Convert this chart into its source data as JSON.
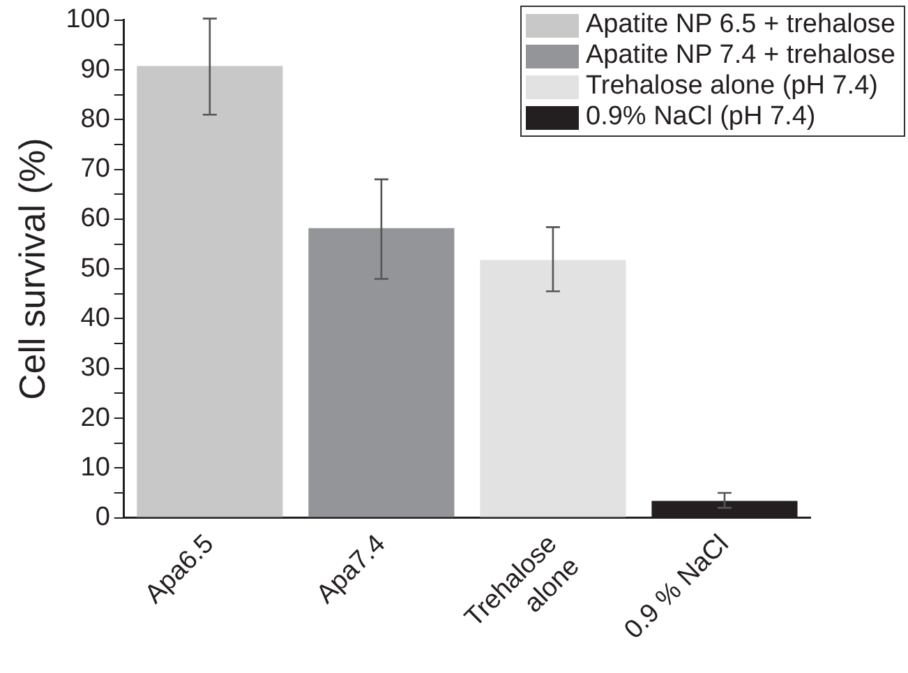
{
  "chart_data": {
    "type": "bar",
    "ylabel": "Cell survival (%)",
    "categories": [
      "Apa6.5",
      "Apa7.4",
      "Trehalose\nalone",
      "0.9 % NaCl"
    ],
    "series": [
      {
        "name": "Apatite NP 6.5 + trehalose",
        "color": "#c8c8c8",
        "values": [
          90.8,
          null,
          null,
          null
        ],
        "errors": [
          [
            81,
            100.3
          ],
          null,
          null,
          null
        ]
      },
      {
        "name": "Apatite NP 7.4 + trehalose",
        "color": "#939598",
        "values": [
          null,
          58.2,
          null,
          null
        ],
        "errors": [
          null,
          [
            48,
            68
          ],
          null,
          null
        ]
      },
      {
        "name": "Trehalose alone (pH 7.4)",
        "color": "#e2e2e2",
        "values": [
          null,
          null,
          51.8,
          null
        ],
        "errors": [
          null,
          null,
          [
            45.5,
            58.4
          ],
          null
        ]
      },
      {
        "name": "0.9% NaCl (pH 7.4)",
        "color": "#231f20",
        "values": [
          null,
          null,
          null,
          3.4
        ],
        "errors": [
          null,
          null,
          null,
          [
            2,
            5
          ]
        ]
      }
    ],
    "stacked": true,
    "ylim": [
      0,
      100
    ],
    "yticks": [
      0,
      {
        "value": 5,
        "label": null
      },
      10,
      {
        "value": 15,
        "label": null
      },
      20,
      {
        "value": 25,
        "label": null
      },
      30,
      {
        "value": 35,
        "label": null
      },
      40,
      {
        "value": 45,
        "label": null
      },
      50,
      {
        "value": 55,
        "label": null
      },
      60,
      {
        "value": 65,
        "label": null
      },
      70,
      {
        "value": 75,
        "label": null
      },
      80,
      {
        "value": 85,
        "label": null
      },
      90,
      {
        "value": 95,
        "label": null
      },
      100
    ],
    "grid": false,
    "legend": "top right"
  }
}
